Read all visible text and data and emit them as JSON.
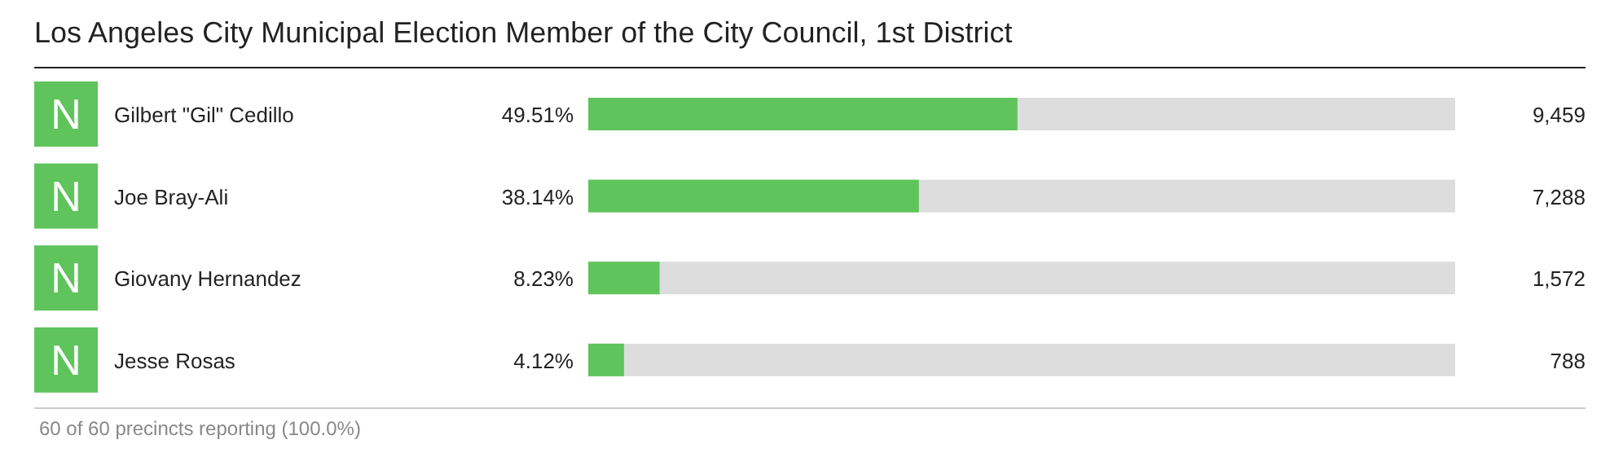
{
  "chart_data": {
    "type": "bar",
    "orientation": "horizontal",
    "title": "Los Angeles City Municipal Election Member of the City Council, 1st District",
    "categories": [
      "Gilbert \"Gil\" Cedillo",
      "Joe Bray-Ali",
      "Giovany Hernandez",
      "Jesse Rosas"
    ],
    "values": [
      49.51,
      38.14,
      8.23,
      4.12
    ],
    "value_labels": [
      "49.51%",
      "38.14%",
      "8.23%",
      "4.12%"
    ],
    "color": "#5ec45b",
    "xlim": [
      0,
      100
    ],
    "tick_labels": "y",
    "annotations": [
      "N",
      "N",
      "N",
      "N",
      "9,459",
      "7,288",
      "1,572",
      "788",
      "60 of 60 precincts reporting (100.0%)"
    ]
  }
}
